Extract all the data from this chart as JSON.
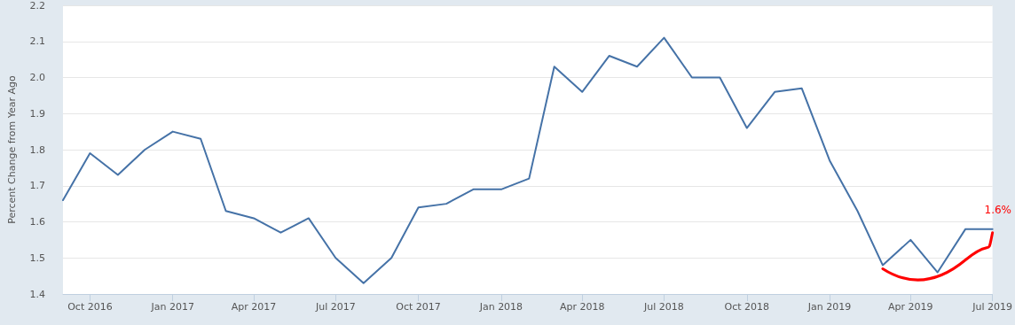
{
  "chart_data": {
    "type": "line",
    "ylabel": "Percent Change from Year Ago",
    "x": [
      "2016-09",
      "2016-10",
      "2016-11",
      "2016-12",
      "2017-01",
      "2017-02",
      "2017-03",
      "2017-04",
      "2017-05",
      "2017-06",
      "2017-07",
      "2017-08",
      "2017-09",
      "2017-10",
      "2017-11",
      "2017-12",
      "2018-01",
      "2018-02",
      "2018-03",
      "2018-04",
      "2018-05",
      "2018-06",
      "2018-07",
      "2018-08",
      "2018-09",
      "2018-10",
      "2018-11",
      "2018-12",
      "2019-01",
      "2019-02",
      "2019-03",
      "2019-04",
      "2019-05",
      "2019-06",
      "2019-07"
    ],
    "series": [
      {
        "color": "#4572a7",
        "values": [
          1.66,
          1.79,
          1.73,
          1.8,
          1.85,
          1.83,
          1.63,
          1.61,
          1.57,
          1.61,
          1.5,
          1.43,
          1.5,
          1.64,
          1.65,
          1.69,
          1.69,
          1.72,
          2.03,
          1.96,
          2.06,
          2.03,
          2.11,
          2.0,
          2.0,
          1.86,
          1.96,
          1.97,
          1.77,
          1.63,
          1.48,
          1.55,
          1.46,
          1.58,
          1.58
        ]
      }
    ],
    "xlim": [
      "2016-09",
      "2019-07"
    ],
    "xticks": [
      {
        "value": "2016-10",
        "label": "Oct 2016"
      },
      {
        "value": "2017-01",
        "label": "Jan 2017"
      },
      {
        "value": "2017-04",
        "label": "Apr 2017"
      },
      {
        "value": "2017-07",
        "label": "Jul 2017"
      },
      {
        "value": "2017-10",
        "label": "Oct 2017"
      },
      {
        "value": "2018-01",
        "label": "Jan 2018"
      },
      {
        "value": "2018-04",
        "label": "Apr 2018"
      },
      {
        "value": "2018-07",
        "label": "Jul 2018"
      },
      {
        "value": "2018-10",
        "label": "Oct 2018"
      },
      {
        "value": "2019-01",
        "label": "Jan 2019"
      },
      {
        "value": "2019-04",
        "label": "Apr 2019"
      },
      {
        "value": "2019-07",
        "label": "Jul 2019"
      }
    ],
    "ylim": [
      1.4,
      2.2
    ],
    "yticks": [
      1.4,
      1.5,
      1.6,
      1.7,
      1.8,
      1.9,
      {
        "value": 2.0,
        "label": "2.0"
      },
      2.1,
      2.2
    ],
    "grid": "y",
    "marker": "none",
    "line_style": "solid",
    "annotations": [
      "1.6%"
    ]
  }
}
